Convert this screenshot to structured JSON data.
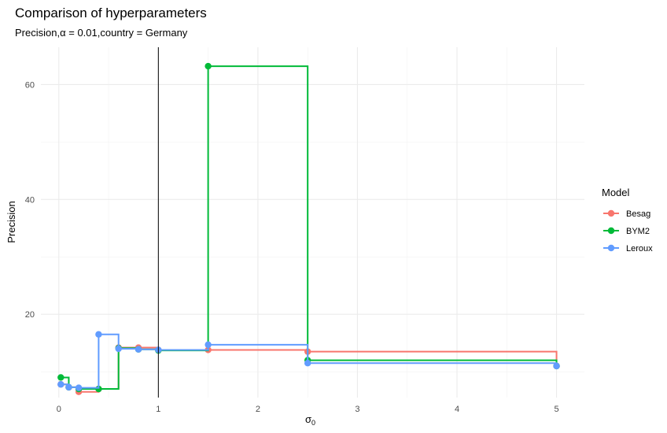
{
  "chart_data": {
    "type": "line",
    "step": true,
    "title": "Comparison of hyperparameters",
    "subtitle_parts": {
      "metric": "Precision",
      "alpha_symbol": "α",
      "alpha_value": "0.01",
      "country_key": "country",
      "country_value": "Germany"
    },
    "xlabel": "σ",
    "xlabel_subscript": "0",
    "ylabel": "Precision",
    "xlim": [
      -0.18,
      5.28
    ],
    "ylim": [
      5.5,
      66.5
    ],
    "x_ticks": [
      0,
      1,
      2,
      3,
      4,
      5
    ],
    "y_ticks": [
      20,
      40,
      60
    ],
    "vline_x": 1,
    "grid": true,
    "legend_title": "Model",
    "legend_position": "right",
    "series": [
      {
        "name": "Besag",
        "color": "#F8766D",
        "x": [
          0.02,
          0.1,
          0.2,
          0.4,
          0.6,
          0.8,
          1.0,
          1.5,
          2.5,
          5.0
        ],
        "y": [
          7.8,
          7.3,
          6.5,
          7.0,
          14.2,
          14.2,
          13.8,
          13.8,
          13.5,
          11.0
        ]
      },
      {
        "name": "BYM2",
        "color": "#00BA38",
        "x": [
          0.02,
          0.1,
          0.2,
          0.4,
          0.6,
          0.8,
          1.0,
          1.5,
          2.5,
          5.0
        ],
        "y": [
          9.0,
          7.3,
          7.0,
          7.0,
          14.1,
          13.9,
          13.7,
          63.2,
          12.0,
          11.0
        ]
      },
      {
        "name": "Leroux",
        "color": "#619CFF",
        "x": [
          0.02,
          0.1,
          0.2,
          0.4,
          0.6,
          0.8,
          1.0,
          1.5,
          2.5,
          5.0
        ],
        "y": [
          7.8,
          7.3,
          7.2,
          16.5,
          14.0,
          13.9,
          13.8,
          14.7,
          11.5,
          11.0
        ]
      }
    ]
  }
}
